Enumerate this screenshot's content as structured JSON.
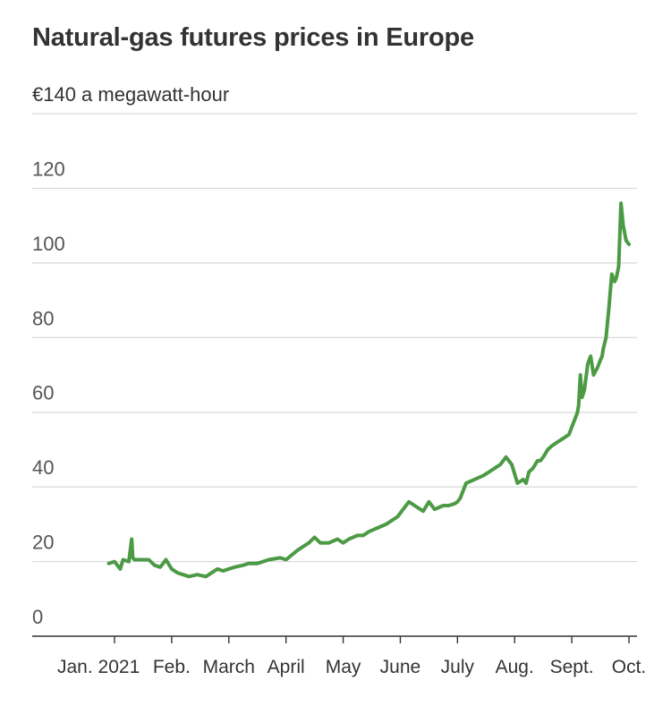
{
  "title": "Natural-gas futures prices in Europe",
  "colors": {
    "line": "#4d9a45",
    "grid": "#d9d9d9",
    "axis": "#333333",
    "text": "#333333"
  },
  "chart_data": {
    "type": "line",
    "title": "Natural-gas futures prices in Europe",
    "ylabel": "€140 a megawatt-hour",
    "top_tick_label": "€140 a megawatt-hour",
    "ylim": [
      0,
      140
    ],
    "y_ticks": [
      0,
      20,
      40,
      60,
      80,
      100,
      120,
      140
    ],
    "y_tick_labels": [
      "0",
      "20",
      "40",
      "60",
      "80",
      "100",
      "120"
    ],
    "x_tick_labels": [
      "Jan. 2021",
      "Feb.",
      "March",
      "April",
      "May",
      "June",
      "July",
      "Aug.",
      "Sept.",
      "Oct."
    ],
    "x_tick_months": [
      1,
      2,
      3,
      4,
      5,
      6,
      7,
      8,
      9,
      10
    ],
    "grid": true,
    "legend": "none",
    "series": [
      {
        "x_month": [
          0.9,
          1.0,
          1.1,
          1.15,
          1.25,
          1.3,
          1.32,
          1.35,
          1.45,
          1.6,
          1.7,
          1.8,
          1.9,
          2.0,
          2.1,
          2.2,
          2.3,
          2.45,
          2.6,
          2.7,
          2.8,
          2.9,
          3.0,
          3.1,
          3.25,
          3.35,
          3.5,
          3.7,
          3.9,
          4.0,
          4.2,
          4.4,
          4.5,
          4.6,
          4.75,
          4.9,
          5.0,
          5.1,
          5.25,
          5.35,
          5.45,
          5.6,
          5.75,
          5.85,
          5.95,
          6.05,
          6.15,
          6.25,
          6.4,
          6.5,
          6.6,
          6.75,
          6.85,
          6.95,
          7.0,
          7.05,
          7.1,
          7.15,
          7.3,
          7.45,
          7.55,
          7.65,
          7.75,
          7.85,
          7.95,
          8.05,
          8.15,
          8.2,
          8.25,
          8.32,
          8.4,
          8.45,
          8.5,
          8.58,
          8.65,
          8.75,
          8.85,
          8.95,
          9.0,
          9.05,
          9.1,
          9.12,
          9.15,
          9.18,
          9.22,
          9.28,
          9.33,
          9.38,
          9.45,
          9.5,
          9.53,
          9.55,
          9.6,
          9.65,
          9.7,
          9.75,
          9.78,
          9.82,
          9.86,
          9.9,
          9.95,
          10.0
        ],
        "y": [
          19.5,
          20,
          18,
          20.5,
          20,
          26,
          21,
          20.5,
          20.5,
          20.5,
          19,
          18.5,
          20.5,
          18,
          17,
          16.5,
          16,
          16.5,
          16,
          17,
          18,
          17.5,
          18,
          18.5,
          19,
          19.5,
          19.5,
          20.5,
          21,
          20.5,
          23,
          25,
          26.5,
          25,
          25,
          26,
          25,
          26,
          27,
          27,
          28,
          29,
          30,
          31,
          32,
          34,
          36,
          35,
          33.5,
          36,
          34,
          35,
          35,
          35.5,
          36,
          37,
          39,
          41,
          42,
          43,
          44,
          45,
          46,
          48,
          46,
          41,
          42,
          41,
          44,
          45,
          47,
          47,
          48,
          50,
          51,
          52,
          53,
          54,
          56,
          58,
          60,
          62,
          70,
          64,
          66,
          73,
          75,
          70,
          72,
          74,
          75,
          77,
          80,
          88,
          97,
          95,
          96,
          99,
          116,
          110,
          106,
          105
        ]
      }
    ]
  }
}
